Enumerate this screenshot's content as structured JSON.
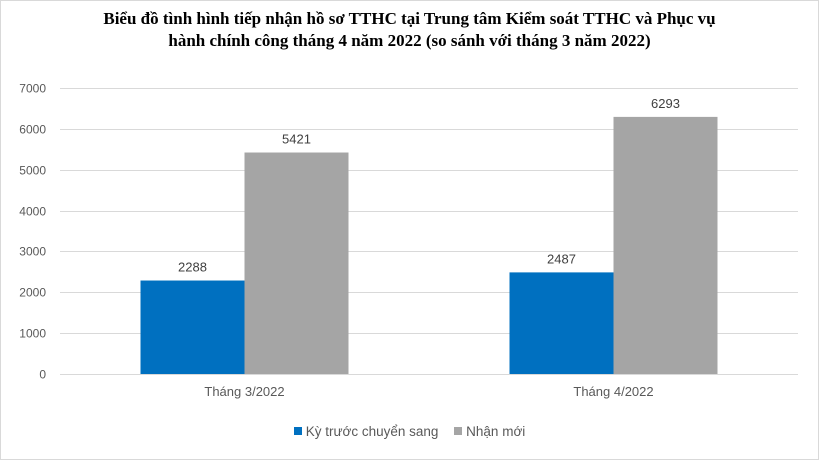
{
  "chart_data": {
    "type": "bar",
    "title_line1": "Biểu đồ tình hình tiếp nhận hồ sơ TTHC tại Trung tâm Kiểm soát TTHC và Phục vụ",
    "title_line2": "hành chính công tháng 4 năm 2022 (so sánh với tháng 3 năm 2022)",
    "categories": [
      "Tháng 3/2022",
      "Tháng 4/2022"
    ],
    "series": [
      {
        "name": "Kỳ trước chuyển sang",
        "values": [
          2288,
          2487
        ],
        "color": "#0070c0"
      },
      {
        "name": "Nhận mới",
        "values": [
          5421,
          6293
        ],
        "color": "#a5a5a5"
      }
    ],
    "ylim": [
      0,
      7000
    ],
    "yticks": [
      0,
      1000,
      2000,
      3000,
      4000,
      5000,
      6000,
      7000
    ],
    "grid": true,
    "legend_position": "bottom"
  }
}
